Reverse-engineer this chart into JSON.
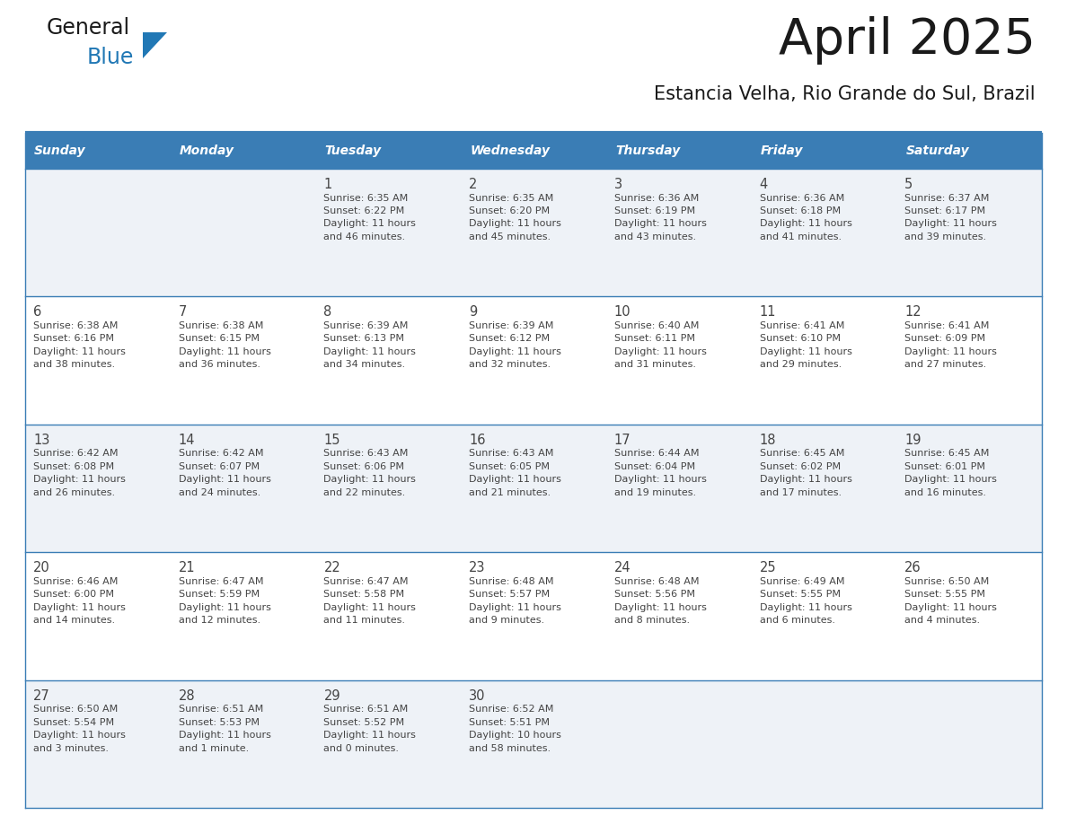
{
  "title": "April 2025",
  "subtitle": "Estancia Velha, Rio Grande do Sul, Brazil",
  "header_bg_color": "#3a7db5",
  "header_text_color": "#ffffff",
  "row_bg_even": "#ffffff",
  "row_bg_odd": "#eef2f7",
  "border_color": "#3a7db5",
  "text_color": "#444444",
  "day_headers": [
    "Sunday",
    "Monday",
    "Tuesday",
    "Wednesday",
    "Thursday",
    "Friday",
    "Saturday"
  ],
  "weeks": [
    [
      {
        "day": "",
        "sunrise": "",
        "sunset": "",
        "daylight": ""
      },
      {
        "day": "",
        "sunrise": "",
        "sunset": "",
        "daylight": ""
      },
      {
        "day": "1",
        "sunrise": "Sunrise: 6:35 AM",
        "sunset": "Sunset: 6:22 PM",
        "daylight": "Daylight: 11 hours\nand 46 minutes."
      },
      {
        "day": "2",
        "sunrise": "Sunrise: 6:35 AM",
        "sunset": "Sunset: 6:20 PM",
        "daylight": "Daylight: 11 hours\nand 45 minutes."
      },
      {
        "day": "3",
        "sunrise": "Sunrise: 6:36 AM",
        "sunset": "Sunset: 6:19 PM",
        "daylight": "Daylight: 11 hours\nand 43 minutes."
      },
      {
        "day": "4",
        "sunrise": "Sunrise: 6:36 AM",
        "sunset": "Sunset: 6:18 PM",
        "daylight": "Daylight: 11 hours\nand 41 minutes."
      },
      {
        "day": "5",
        "sunrise": "Sunrise: 6:37 AM",
        "sunset": "Sunset: 6:17 PM",
        "daylight": "Daylight: 11 hours\nand 39 minutes."
      }
    ],
    [
      {
        "day": "6",
        "sunrise": "Sunrise: 6:38 AM",
        "sunset": "Sunset: 6:16 PM",
        "daylight": "Daylight: 11 hours\nand 38 minutes."
      },
      {
        "day": "7",
        "sunrise": "Sunrise: 6:38 AM",
        "sunset": "Sunset: 6:15 PM",
        "daylight": "Daylight: 11 hours\nand 36 minutes."
      },
      {
        "day": "8",
        "sunrise": "Sunrise: 6:39 AM",
        "sunset": "Sunset: 6:13 PM",
        "daylight": "Daylight: 11 hours\nand 34 minutes."
      },
      {
        "day": "9",
        "sunrise": "Sunrise: 6:39 AM",
        "sunset": "Sunset: 6:12 PM",
        "daylight": "Daylight: 11 hours\nand 32 minutes."
      },
      {
        "day": "10",
        "sunrise": "Sunrise: 6:40 AM",
        "sunset": "Sunset: 6:11 PM",
        "daylight": "Daylight: 11 hours\nand 31 minutes."
      },
      {
        "day": "11",
        "sunrise": "Sunrise: 6:41 AM",
        "sunset": "Sunset: 6:10 PM",
        "daylight": "Daylight: 11 hours\nand 29 minutes."
      },
      {
        "day": "12",
        "sunrise": "Sunrise: 6:41 AM",
        "sunset": "Sunset: 6:09 PM",
        "daylight": "Daylight: 11 hours\nand 27 minutes."
      }
    ],
    [
      {
        "day": "13",
        "sunrise": "Sunrise: 6:42 AM",
        "sunset": "Sunset: 6:08 PM",
        "daylight": "Daylight: 11 hours\nand 26 minutes."
      },
      {
        "day": "14",
        "sunrise": "Sunrise: 6:42 AM",
        "sunset": "Sunset: 6:07 PM",
        "daylight": "Daylight: 11 hours\nand 24 minutes."
      },
      {
        "day": "15",
        "sunrise": "Sunrise: 6:43 AM",
        "sunset": "Sunset: 6:06 PM",
        "daylight": "Daylight: 11 hours\nand 22 minutes."
      },
      {
        "day": "16",
        "sunrise": "Sunrise: 6:43 AM",
        "sunset": "Sunset: 6:05 PM",
        "daylight": "Daylight: 11 hours\nand 21 minutes."
      },
      {
        "day": "17",
        "sunrise": "Sunrise: 6:44 AM",
        "sunset": "Sunset: 6:04 PM",
        "daylight": "Daylight: 11 hours\nand 19 minutes."
      },
      {
        "day": "18",
        "sunrise": "Sunrise: 6:45 AM",
        "sunset": "Sunset: 6:02 PM",
        "daylight": "Daylight: 11 hours\nand 17 minutes."
      },
      {
        "day": "19",
        "sunrise": "Sunrise: 6:45 AM",
        "sunset": "Sunset: 6:01 PM",
        "daylight": "Daylight: 11 hours\nand 16 minutes."
      }
    ],
    [
      {
        "day": "20",
        "sunrise": "Sunrise: 6:46 AM",
        "sunset": "Sunset: 6:00 PM",
        "daylight": "Daylight: 11 hours\nand 14 minutes."
      },
      {
        "day": "21",
        "sunrise": "Sunrise: 6:47 AM",
        "sunset": "Sunset: 5:59 PM",
        "daylight": "Daylight: 11 hours\nand 12 minutes."
      },
      {
        "day": "22",
        "sunrise": "Sunrise: 6:47 AM",
        "sunset": "Sunset: 5:58 PM",
        "daylight": "Daylight: 11 hours\nand 11 minutes."
      },
      {
        "day": "23",
        "sunrise": "Sunrise: 6:48 AM",
        "sunset": "Sunset: 5:57 PM",
        "daylight": "Daylight: 11 hours\nand 9 minutes."
      },
      {
        "day": "24",
        "sunrise": "Sunrise: 6:48 AM",
        "sunset": "Sunset: 5:56 PM",
        "daylight": "Daylight: 11 hours\nand 8 minutes."
      },
      {
        "day": "25",
        "sunrise": "Sunrise: 6:49 AM",
        "sunset": "Sunset: 5:55 PM",
        "daylight": "Daylight: 11 hours\nand 6 minutes."
      },
      {
        "day": "26",
        "sunrise": "Sunrise: 6:50 AM",
        "sunset": "Sunset: 5:55 PM",
        "daylight": "Daylight: 11 hours\nand 4 minutes."
      }
    ],
    [
      {
        "day": "27",
        "sunrise": "Sunrise: 6:50 AM",
        "sunset": "Sunset: 5:54 PM",
        "daylight": "Daylight: 11 hours\nand 3 minutes."
      },
      {
        "day": "28",
        "sunrise": "Sunrise: 6:51 AM",
        "sunset": "Sunset: 5:53 PM",
        "daylight": "Daylight: 11 hours\nand 1 minute."
      },
      {
        "day": "29",
        "sunrise": "Sunrise: 6:51 AM",
        "sunset": "Sunset: 5:52 PM",
        "daylight": "Daylight: 11 hours\nand 0 minutes."
      },
      {
        "day": "30",
        "sunrise": "Sunrise: 6:52 AM",
        "sunset": "Sunset: 5:51 PM",
        "daylight": "Daylight: 10 hours\nand 58 minutes."
      },
      {
        "day": "",
        "sunrise": "",
        "sunset": "",
        "daylight": ""
      },
      {
        "day": "",
        "sunrise": "",
        "sunset": "",
        "daylight": ""
      },
      {
        "day": "",
        "sunrise": "",
        "sunset": "",
        "daylight": ""
      }
    ]
  ],
  "logo_text_general": "General",
  "logo_text_blue": "Blue",
  "logo_color_general": "#1a1a1a",
  "logo_color_blue": "#2178b5",
  "logo_triangle_color": "#2178b5"
}
